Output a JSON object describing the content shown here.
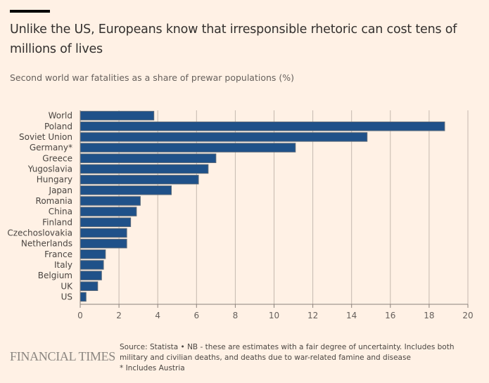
{
  "header": {
    "title": "Unlike the US, Europeans know that irresponsible rhetoric can cost tens of millions of lives",
    "subtitle": "Second world war fatalities as a share of prewar populations (%)"
  },
  "footer": {
    "logo": "FINANCIAL TIMES",
    "source": "Source: Statista • NB - these are estimates with a fair degree of uncertainty. Includes both military and civilian deaths, and deaths due to war-related famine and disease",
    "note": "* Includes Austria"
  },
  "colors": {
    "bar": "#1f5189",
    "bar_stroke": "#5a6a7a",
    "grid": "#c4b8ae",
    "axis": "#8a817b",
    "background": "#fff1e5"
  },
  "chart_data": {
    "type": "bar",
    "orientation": "horizontal",
    "title": "Second world war fatalities as a share of prewar populations (%)",
    "xlabel": "",
    "ylabel": "",
    "xlim": [
      0,
      20
    ],
    "xticks": [
      0,
      2,
      4,
      6,
      8,
      10,
      12,
      14,
      16,
      18,
      20
    ],
    "grid": true,
    "categories": [
      "World",
      "Poland",
      "Soviet Union",
      "Germany*",
      "Greece",
      "Yugoslavia",
      "Hungary",
      "Japan",
      "Romania",
      "China",
      "Finland",
      "Czechoslovakia",
      "Netherlands",
      "France",
      "Italy",
      "Belgium",
      "UK",
      "US"
    ],
    "values": [
      3.8,
      18.8,
      14.8,
      11.1,
      7.0,
      6.6,
      6.1,
      4.7,
      3.1,
      2.9,
      2.6,
      2.4,
      2.4,
      1.3,
      1.2,
      1.1,
      0.9,
      0.3
    ]
  }
}
